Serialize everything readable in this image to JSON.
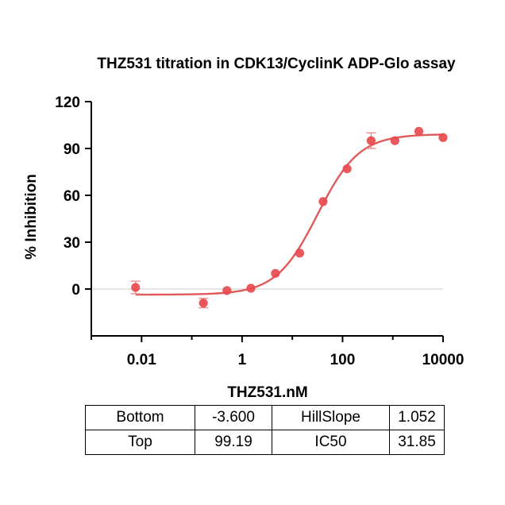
{
  "chart_data": {
    "type": "scatter",
    "title": "THZ531 titration in CDK13/CyclinK ADP-Glo assay",
    "xlabel": "THZ531,nM",
    "ylabel": "% Inhibition",
    "x_scale": "log",
    "xlim": [
      0.001,
      10000
    ],
    "ylim": [
      -30,
      120
    ],
    "x_ticks": [
      0.01,
      1,
      100,
      10000
    ],
    "x_tick_labels": [
      "0.01",
      "1",
      "100",
      "10000"
    ],
    "y_ticks": [
      0,
      30,
      60,
      90,
      120
    ],
    "y_tick_labels": [
      "0",
      "30",
      "60",
      "90",
      "120"
    ],
    "grid": false,
    "zero_reference_line": true,
    "point_color": "#e84a4f",
    "curve_color": "#e05a5a",
    "series": [
      {
        "x": [
          0.0076,
          0.17,
          0.5,
          1.5,
          4.6,
          14,
          41,
          123,
          370,
          1100,
          3300,
          10000
        ],
        "y": [
          1,
          -9,
          -1,
          0.5,
          10,
          23,
          56,
          77,
          95,
          95,
          101,
          97
        ],
        "error": [
          4,
          3,
          0,
          0,
          0,
          0,
          0,
          0,
          5,
          0,
          0,
          0
        ]
      }
    ],
    "fit": {
      "model": "four-parameter logistic",
      "bottom": -3.6,
      "top": 99.19,
      "ic50": 31.85,
      "hill_slope": 1.052
    }
  },
  "params_table": {
    "rows": [
      [
        "Bottom",
        "-3.600",
        "HillSlope",
        "1.052"
      ],
      [
        "Top",
        "99.19",
        "IC50",
        "31.85"
      ]
    ]
  }
}
